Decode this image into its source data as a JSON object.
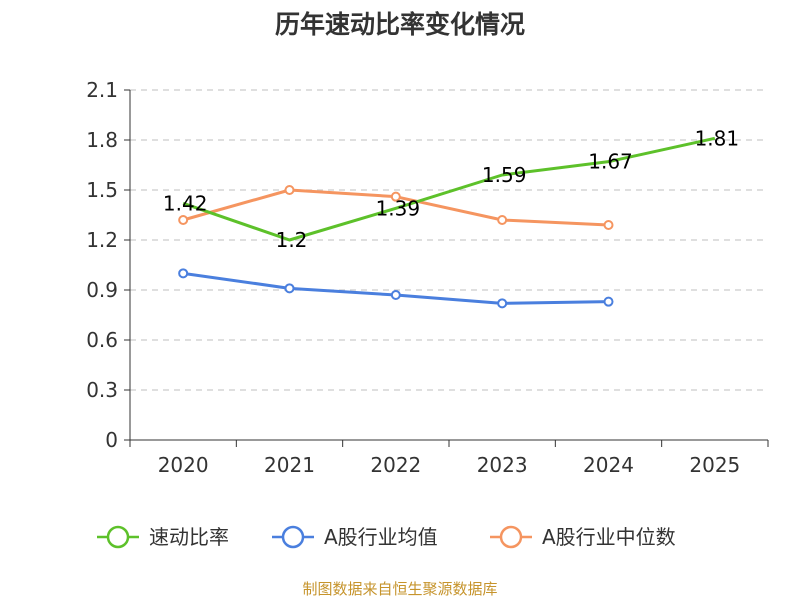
{
  "chart_data": {
    "type": "line",
    "title": "历年速动比率变化情况",
    "categories": [
      "2020",
      "2021",
      "2022",
      "2023",
      "2024",
      "2025"
    ],
    "y_ticks": [
      "0",
      "0.3",
      "0.6",
      "0.9",
      "1.2",
      "1.5",
      "1.8",
      "2.1"
    ],
    "ylim": [
      0,
      2.1
    ],
    "grid": true,
    "legend_position": "bottom",
    "series": [
      {
        "name": "速动比率",
        "color": "#5dc12a",
        "values": [
          1.42,
          1.2,
          1.39,
          1.59,
          1.67,
          1.81
        ],
        "labels": [
          "1.42",
          "1.2",
          "1.39",
          "1.59",
          "1.67",
          "1.81"
        ],
        "markers": false
      },
      {
        "name": "A股行业均值",
        "color": "#4a7fde",
        "values": [
          1.0,
          0.91,
          0.87,
          0.82,
          0.83,
          null
        ],
        "markers": true
      },
      {
        "name": "A股行业中位数",
        "color": "#f59560",
        "values": [
          1.32,
          1.5,
          1.46,
          1.32,
          1.29,
          null
        ],
        "markers": true
      }
    ],
    "source": "制图数据来自恒生聚源数据库"
  }
}
